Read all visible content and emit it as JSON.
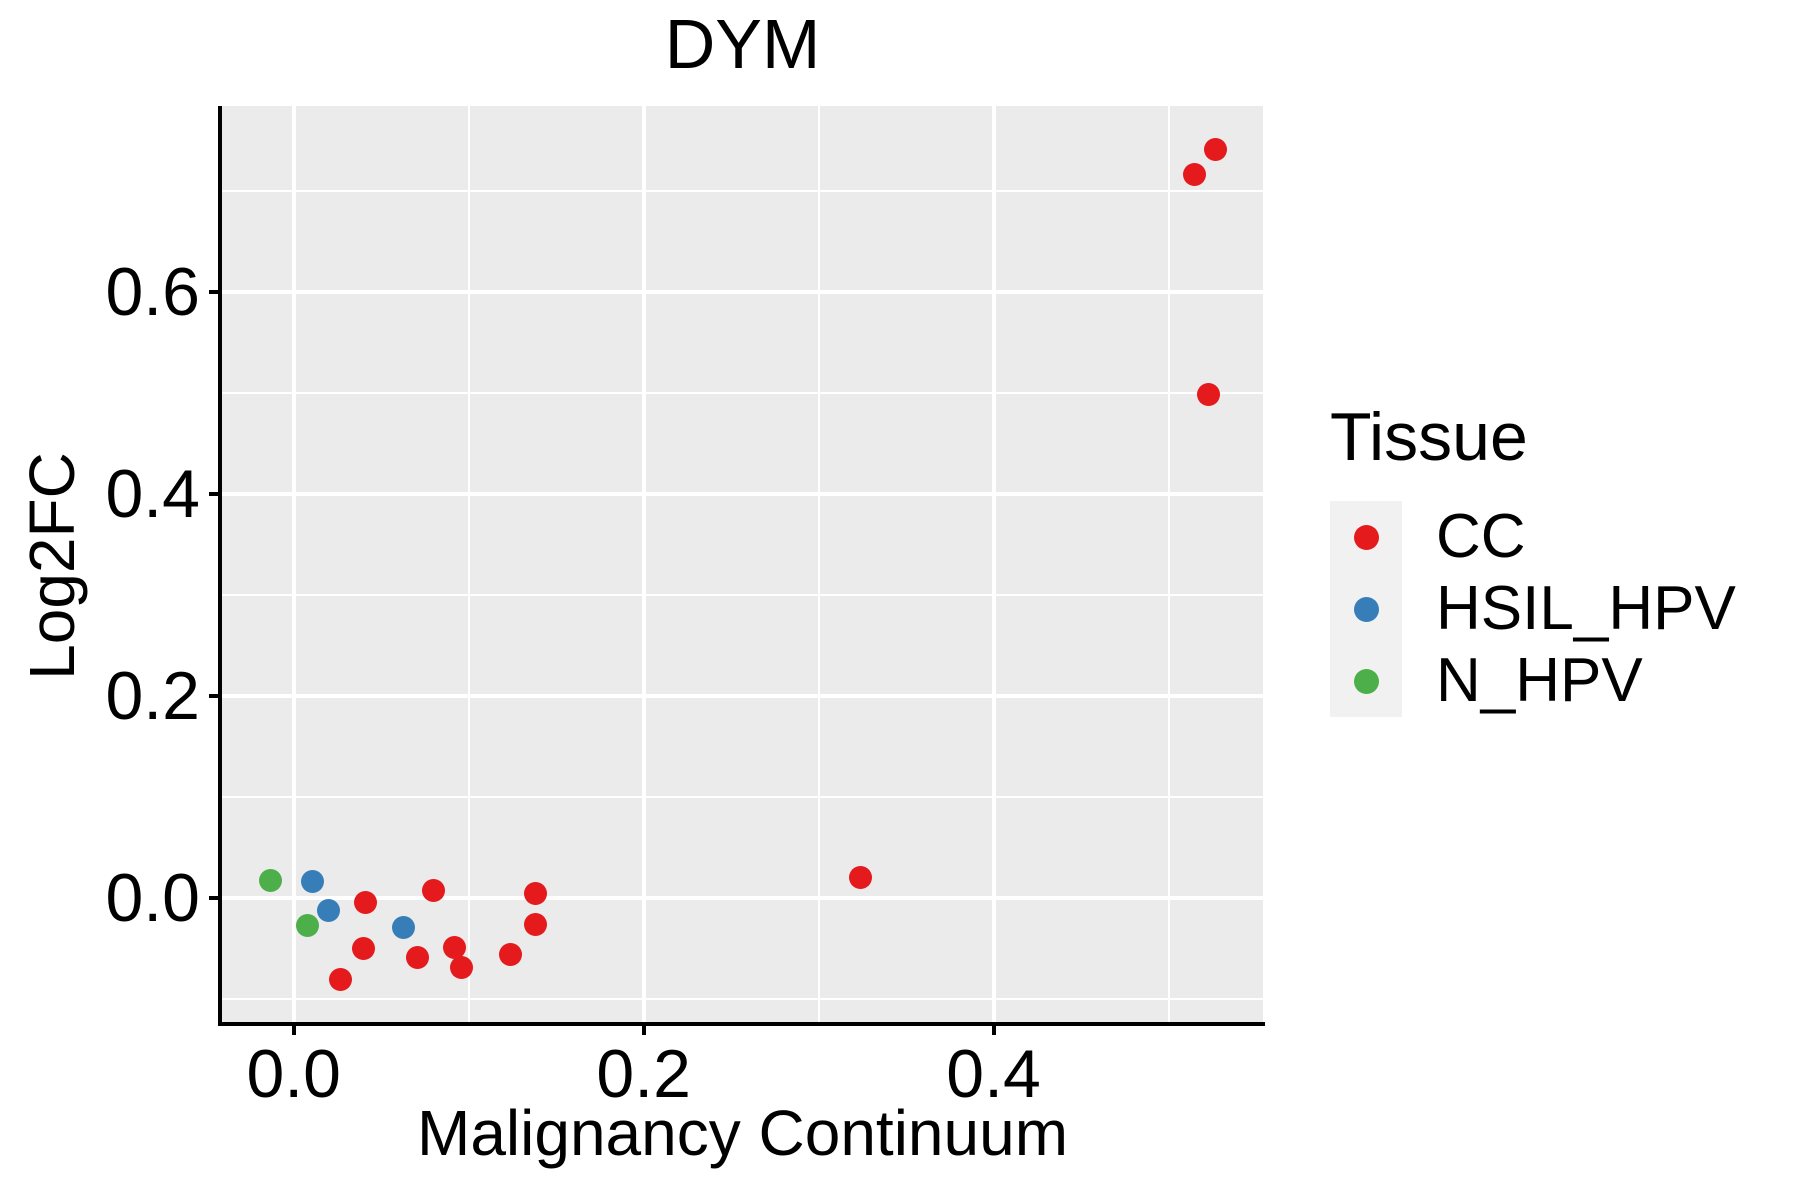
{
  "title": "DYM",
  "axes": {
    "x": {
      "title": "Malignancy Continuum",
      "tick_labels": [
        "0.0",
        "0.2",
        "0.4"
      ]
    },
    "y": {
      "title": "Log2FC",
      "tick_labels": [
        "0.0",
        "0.2",
        "0.4",
        "0.6"
      ]
    }
  },
  "legend": {
    "title": "Tissue",
    "entries": [
      {
        "label": "CC",
        "color": "#E41A1C"
      },
      {
        "label": "HSIL_HPV",
        "color": "#377EB8"
      },
      {
        "label": "N_HPV",
        "color": "#4DAF4A"
      }
    ]
  },
  "colors": {
    "panel_background": "#EBEBEB",
    "gridline": "#FFFFFF",
    "axis": "#000000",
    "legend_key_background": "#F1F1F1"
  },
  "chart_data": {
    "type": "scatter",
    "title": "DYM",
    "xlabel": "Malignancy Continuum",
    "ylabel": "Log2FC",
    "xlim": [
      -0.041,
      0.554
    ],
    "ylim": [
      -0.123,
      0.784
    ],
    "x_major_ticks": [
      0.0,
      0.2,
      0.4
    ],
    "y_major_ticks": [
      0.0,
      0.2,
      0.4,
      0.6
    ],
    "x_minor_ticks": [
      0.1,
      0.3,
      0.5
    ],
    "y_minor_ticks": [
      -0.1,
      0.1,
      0.3,
      0.5,
      0.7
    ],
    "grid": true,
    "legend_position": "right",
    "legend_title": "Tissue",
    "series": [
      {
        "name": "CC",
        "color": "#E41A1C",
        "points": [
          [
            0.041,
            -0.005
          ],
          [
            0.08,
            0.007
          ],
          [
            0.04,
            -0.05
          ],
          [
            0.027,
            -0.081
          ],
          [
            0.071,
            -0.059
          ],
          [
            0.092,
            -0.049
          ],
          [
            0.096,
            -0.069
          ],
          [
            0.124,
            -0.056
          ],
          [
            0.138,
            0.004
          ],
          [
            0.138,
            -0.026
          ],
          [
            0.324,
            0.02
          ],
          [
            0.515,
            0.716
          ],
          [
            0.527,
            0.741
          ],
          [
            0.523,
            0.498
          ]
        ]
      },
      {
        "name": "HSIL_HPV",
        "color": "#377EB8",
        "points": [
          [
            0.011,
            0.016
          ],
          [
            0.02,
            -0.013
          ],
          [
            0.063,
            -0.029
          ]
        ]
      },
      {
        "name": "N_HPV",
        "color": "#4DAF4A",
        "points": [
          [
            -0.013,
            0.017
          ],
          [
            0.008,
            -0.027
          ]
        ]
      }
    ]
  }
}
